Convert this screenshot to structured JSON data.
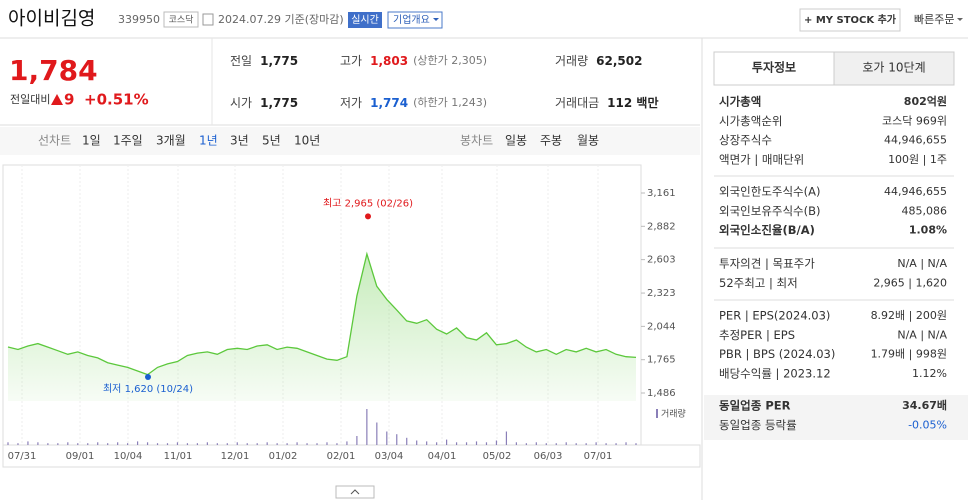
{
  "header": {
    "name": "아이비김영",
    "code": "339950",
    "market": "코스닥",
    "date": "2024.07.29 기준(장마감)",
    "realtime": "실시간",
    "overview": "기업개요",
    "mystock": "+ MY STOCK 추가",
    "quickorder": "빠른주문"
  },
  "quote": {
    "price": "1,784",
    "change_label": "전일대비",
    "change": "9",
    "rate": "+0.51%"
  },
  "summary": [
    {
      "label": "전일",
      "value": "1,775"
    },
    {
      "label": "고가",
      "value": "1,803",
      "extra": "(상한가 2,305)",
      "color": "#e0191c"
    },
    {
      "label": "거래량",
      "value": "62,502"
    },
    {
      "label": "시가",
      "value": "1,775"
    },
    {
      "label": "저가",
      "value": "1,774",
      "extra": "(하한가 1,243)",
      "color": "#1a5fd0"
    },
    {
      "label": "거래대금",
      "value": "112 백만"
    }
  ],
  "chart_tabs": {
    "line_label": "선차트",
    "line": [
      "1일",
      "1주일",
      "3개월",
      "1년",
      "3년",
      "5년",
      "10년"
    ],
    "active": 3,
    "candle_label": "봉차트",
    "candle": [
      "일봉",
      "주봉",
      "월봉"
    ]
  },
  "chart_data": {
    "type": "line",
    "color": "#5cc83c",
    "ylim": [
      1486,
      3161
    ],
    "yticks": [
      {
        "value": 1486,
        "label": "1,486"
      },
      {
        "value": 1765,
        "label": "1,765"
      },
      {
        "value": 2044,
        "label": "2,044"
      },
      {
        "value": 2323,
        "label": "2,323"
      },
      {
        "value": 2603,
        "label": "2,603"
      },
      {
        "value": 2882,
        "label": "2,882"
      },
      {
        "value": 3161,
        "label": "3,161"
      }
    ],
    "xlabels": [
      "07/31",
      "09/01",
      "10/04",
      "11/01",
      "12/01",
      "01/02",
      "02/01",
      "03/04",
      "04/01",
      "05/02",
      "06/03",
      "07/01"
    ],
    "values": [
      1871,
      1850,
      1880,
      1900,
      1870,
      1840,
      1810,
      1830,
      1800,
      1780,
      1740,
      1720,
      1700,
      1670,
      1640,
      1700,
      1730,
      1750,
      1800,
      1820,
      1830,
      1810,
      1850,
      1860,
      1850,
      1880,
      1890,
      1850,
      1870,
      1860,
      1830,
      1800,
      1770,
      1760,
      1790,
      2300,
      2650,
      2380,
      2270,
      2180,
      2090,
      2070,
      2100,
      2020,
      1980,
      2030,
      1950,
      1930,
      1990,
      1890,
      1900,
      1930,
      1870,
      1830,
      1850,
      1810,
      1850,
      1830,
      1860,
      1830,
      1850,
      1810,
      1790,
      1784
    ],
    "volume_label": "거래량",
    "volume_color": "#8a7fb8",
    "volume": [
      3,
      2,
      4,
      3,
      2,
      2,
      3,
      2,
      2,
      3,
      2,
      3,
      2,
      4,
      3,
      2,
      2,
      3,
      2,
      2,
      3,
      2,
      2,
      3,
      2,
      2,
      3,
      2,
      2,
      3,
      2,
      2,
      3,
      2,
      4,
      10,
      40,
      25,
      15,
      12,
      8,
      5,
      4,
      3,
      6,
      3,
      3,
      4,
      3,
      5,
      15,
      3,
      2,
      3,
      2,
      2,
      3,
      2,
      2,
      3,
      2,
      2,
      3,
      2
    ],
    "high": {
      "label": "최고 2,965 (02/26)",
      "value": 2965
    },
    "low": {
      "label": "최저 1,620 (10/24)",
      "value": 1620
    }
  },
  "info": {
    "tabs": [
      "투자정보",
      "호가 10단계"
    ],
    "sections": [
      [
        {
          "label": "시가총액",
          "value": "802억원",
          "bold": true
        },
        {
          "label": "시가총액순위",
          "value": "코스닥 969위"
        },
        {
          "label": "상장주식수",
          "value": "44,946,655"
        },
        {
          "label": "액면가 | 매매단위",
          "value": "100원 | 1주"
        }
      ],
      [
        {
          "label": "외국인한도주식수(A)",
          "value": "44,946,655"
        },
        {
          "label": "외국인보유주식수(B)",
          "value": "485,086"
        },
        {
          "label": "외국인소진율(B/A)",
          "value": "1.08%",
          "bold": true
        }
      ],
      [
        {
          "label": "투자의견 | 목표주가",
          "value": "N/A | N/A"
        },
        {
          "label": "52주최고 | 최저",
          "value": "2,965 | 1,620"
        }
      ],
      [
        {
          "label": "PER | EPS(2024.03)",
          "value": "8.92배 | 200원"
        },
        {
          "label": "추정PER | EPS",
          "value": "N/A | N/A"
        },
        {
          "label": "PBR | BPS (2024.03)",
          "value": "1.79배 | 998원"
        },
        {
          "label": "배당수익률 | 2023.12",
          "value": "1.12%"
        }
      ],
      [
        {
          "label": "동일업종 PER",
          "value": "34.67배",
          "bold": true
        },
        {
          "label": "동일업종 등락률",
          "value": "-0.05%",
          "color": "#1a5fd0"
        }
      ]
    ]
  }
}
